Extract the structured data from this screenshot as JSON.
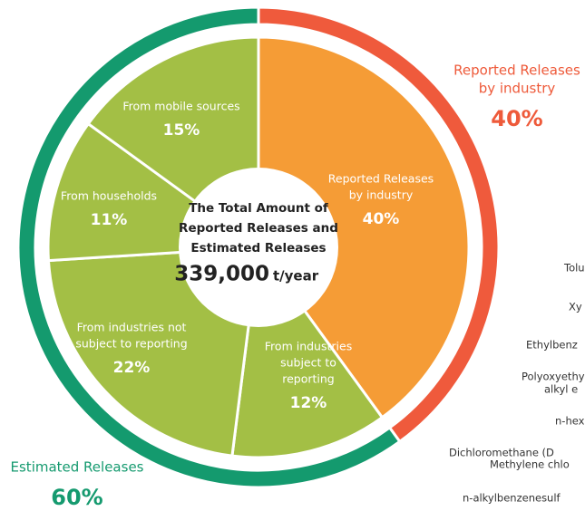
{
  "chart_data": {
    "type": "donut",
    "center_lines": [
      "The Total Amount of",
      "Reported Releases and",
      "Estimated Releases"
    ],
    "total": "339,000",
    "total_unit": "t/year",
    "inner": [
      {
        "label_lines": [
          "Reported Releases",
          "by industry"
        ],
        "value": 40,
        "value_label": "40%",
        "color": "#f59c36"
      },
      {
        "label_lines": [
          "From industries",
          "subject to",
          "reporting"
        ],
        "value": 12,
        "value_label": "12%",
        "color": "#a3bf45"
      },
      {
        "label_lines": [
          "From industries not",
          "subject to reporting"
        ],
        "value": 22,
        "value_label": "22%",
        "color": "#a3bf45"
      },
      {
        "label_lines": [
          "From households"
        ],
        "value": 11,
        "value_label": "11%",
        "color": "#a3bf45"
      },
      {
        "label_lines": [
          "From mobile sources"
        ],
        "value": 15,
        "value_label": "15%",
        "color": "#a3bf45"
      }
    ],
    "outer": [
      {
        "label_lines": [
          "Reported Releases",
          "by industry"
        ],
        "value": 40,
        "value_label": "40%",
        "color": "#ef5a3c"
      },
      {
        "label_lines": [
          "Estimated Releases"
        ],
        "value": 60,
        "value_label": "60%",
        "color": "#149a6e"
      }
    ],
    "side_labels": [
      "Tolu",
      "Xy",
      "Ethylbenz",
      "Polyoxyethy",
      "alkyl e",
      "n-hex",
      "Dichloromethane (D",
      "Methylene chlo",
      "n-alkylbenzenesulf"
    ]
  }
}
